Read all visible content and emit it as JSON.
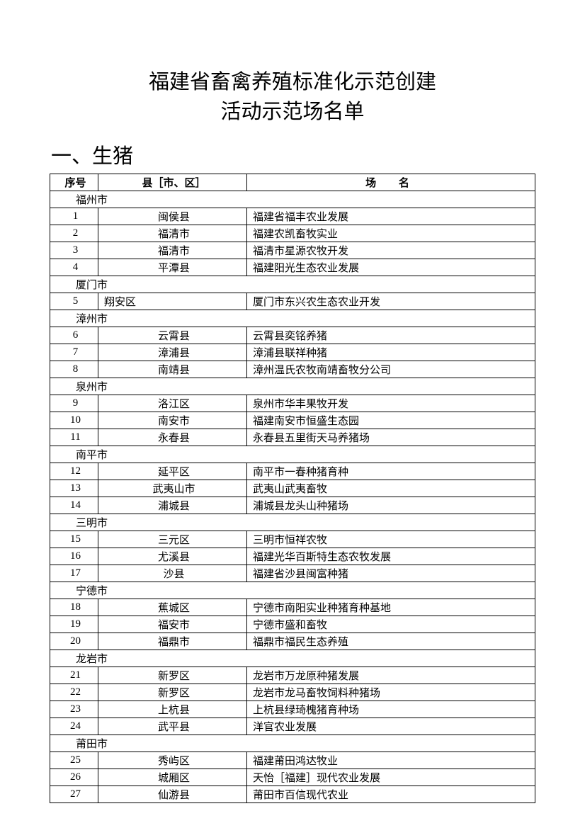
{
  "title_line1": "福建省畜禽养殖标准化示范创建",
  "title_line2": "活动示范场名单",
  "section_heading": "一、生猪",
  "columns": {
    "c1": "序号",
    "c2": "县［市、区］",
    "c3": "场 名"
  },
  "groups": [
    {
      "name": "福州市",
      "rows": [
        {
          "n": "1",
          "county": "闽侯县",
          "farm": "福建省福丰农业发展"
        },
        {
          "n": "2",
          "county": "福清市",
          "farm": "福建农凯畜牧实业"
        },
        {
          "n": "3",
          "county": "福清市",
          "farm": "福清市星源农牧开发"
        },
        {
          "n": "4",
          "county": "平潭县",
          "farm": "福建阳光生态农业发展"
        }
      ]
    },
    {
      "name": "厦门市",
      "rows": [
        {
          "n": "5",
          "county": "翔安区",
          "farm": "厦门市东兴农生态农业开发",
          "county_align": "left"
        }
      ]
    },
    {
      "name": "漳州市",
      "rows": [
        {
          "n": "6",
          "county": "云霄县",
          "farm": "云霄县奕铭养猪"
        },
        {
          "n": "7",
          "county": "漳浦县",
          "farm": "漳浦县联祥种猪"
        },
        {
          "n": "8",
          "county": "南靖县",
          "farm": "漳州温氏农牧南靖畜牧分公司"
        }
      ]
    },
    {
      "name": "泉州市",
      "rows": [
        {
          "n": "9",
          "county": "洛江区",
          "farm": "泉州市华丰果牧开发"
        },
        {
          "n": "10",
          "county": "南安市",
          "farm": "福建南安市恒盛生态园"
        },
        {
          "n": "11",
          "county": "永春县",
          "farm": "永春县五里街天马养猪场"
        }
      ]
    },
    {
      "name": "南平市",
      "rows": [
        {
          "n": "12",
          "county": "延平区",
          "farm": "南平市一春种猪育种"
        },
        {
          "n": "13",
          "county": "武夷山市",
          "farm": "武夷山武夷畜牧"
        },
        {
          "n": "14",
          "county": "浦城县",
          "farm": "浦城县龙头山种猪场"
        }
      ]
    },
    {
      "name": "三明市",
      "rows": [
        {
          "n": "15",
          "county": "三元区",
          "farm": "三明市恒祥农牧"
        },
        {
          "n": "16",
          "county": "尤溪县",
          "farm": "福建光华百斯特生态农牧发展"
        },
        {
          "n": "17",
          "county": "沙县",
          "farm": "福建省沙县闽富种猪"
        }
      ]
    },
    {
      "name": "宁德市",
      "rows": [
        {
          "n": "18",
          "county": "蕉城区",
          "farm": "宁德市南阳实业种猪育种基地"
        },
        {
          "n": "19",
          "county": "福安市",
          "farm": "宁德市盛和畜牧"
        },
        {
          "n": "20",
          "county": "福鼎市",
          "farm": "福鼎市福民生态养殖"
        }
      ]
    },
    {
      "name": "龙岩市",
      "rows": [
        {
          "n": "21",
          "county": "新罗区",
          "farm": "龙岩市万龙原种猪发展"
        },
        {
          "n": "22",
          "county": "新罗区",
          "farm": "龙岩市龙马畜牧饲料种猪场"
        },
        {
          "n": "23",
          "county": "上杭县",
          "farm": "上杭县绿琦槐猪育种场"
        },
        {
          "n": "24",
          "county": "武平县",
          "farm": "洋官农业发展"
        }
      ]
    },
    {
      "name": "莆田市",
      "rows": [
        {
          "n": "25",
          "county": "秀屿区",
          "farm": "福建莆田鸿达牧业"
        },
        {
          "n": "26",
          "county": "城厢区",
          "farm": "天怡［福建］现代农业发展"
        },
        {
          "n": "27",
          "county": "仙游县",
          "farm": "莆田市百信现代农业"
        }
      ]
    }
  ]
}
